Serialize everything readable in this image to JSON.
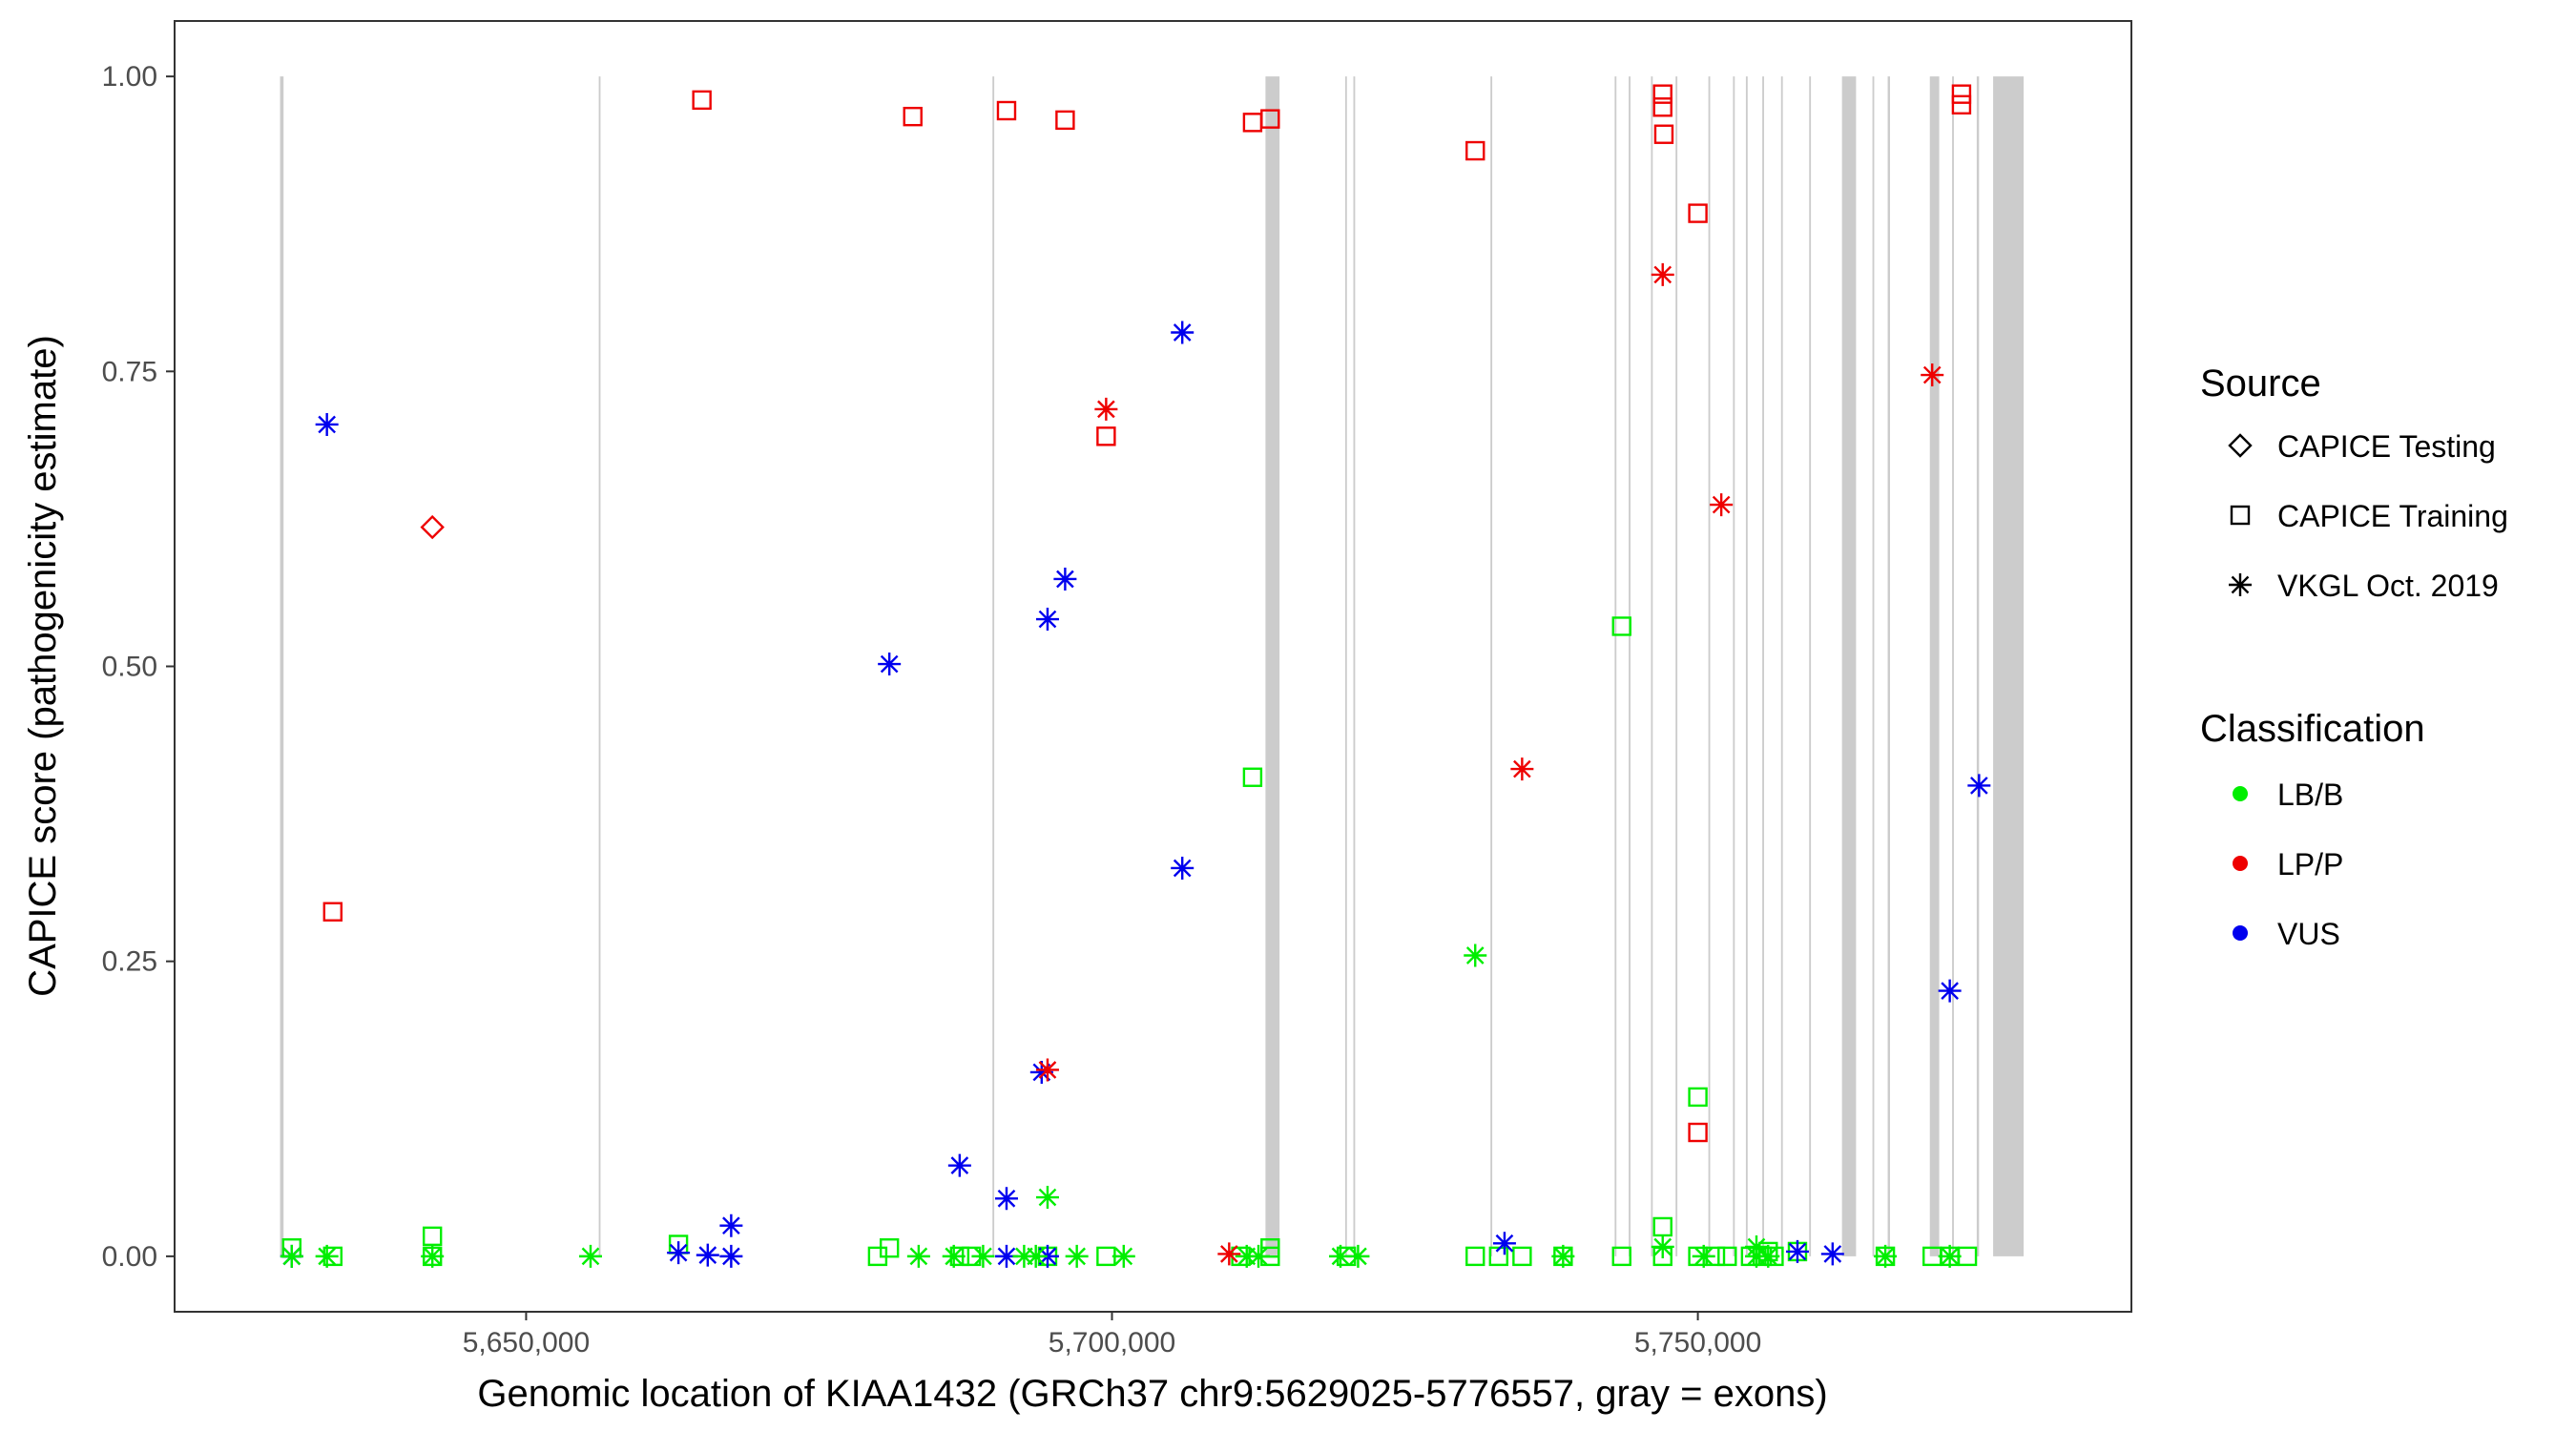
{
  "chart_data": {
    "type": "scatter",
    "title": "",
    "xlabel": "Genomic location of KIAA1432 (GRCh37 chr9:5629025-5776557, gray = exons)",
    "ylabel": "CAPICE score (pathogenicity estimate)",
    "xlim": [
      5620000,
      5787000
    ],
    "ylim": [
      -0.047,
      1.047
    ],
    "x_ticks": [
      5650000,
      5700000,
      5750000
    ],
    "x_tick_labels": [
      "5,650,000",
      "5,700,000",
      "5,750,000"
    ],
    "y_ticks": [
      0,
      0.25,
      0.5,
      0.75,
      1
    ],
    "y_tick_labels": [
      "0.00",
      "0.25",
      "0.50",
      "0.75",
      "1.00"
    ],
    "grid": false,
    "exons": [
      [
        5629000,
        5629300
      ],
      [
        5656200,
        5656350
      ],
      [
        5689800,
        5689950
      ],
      [
        5713100,
        5714300
      ],
      [
        5719900,
        5720050
      ],
      [
        5720600,
        5720750
      ],
      [
        5732300,
        5732450
      ],
      [
        5742900,
        5743050
      ],
      [
        5744100,
        5744250
      ],
      [
        5746000,
        5746150
      ],
      [
        5748100,
        5748250
      ],
      [
        5750900,
        5751050
      ],
      [
        5753000,
        5753150
      ],
      [
        5754100,
        5754250
      ],
      [
        5755500,
        5755650
      ],
      [
        5757100,
        5757250
      ],
      [
        5759500,
        5759650
      ],
      [
        5762300,
        5763500
      ],
      [
        5764900,
        5765050
      ],
      [
        5766200,
        5766400
      ],
      [
        5769800,
        5770600
      ],
      [
        5771700,
        5771850
      ],
      [
        5773800,
        5774000
      ],
      [
        5775200,
        5777800
      ]
    ],
    "legend": {
      "source_title": "Source",
      "source_entries": [
        "CAPICE Testing",
        "CAPICE Training",
        "VKGL Oct. 2019"
      ],
      "class_title": "Classification",
      "class_entries": [
        "LB/B",
        "LP/P",
        "VUS"
      ],
      "placement": "right"
    },
    "colors": {
      "LB/B": "#00ee00",
      "LP/P": "#ee0000",
      "VUS": "#0000ee"
    },
    "series": [
      {
        "name": "CAPICE Testing",
        "points": [
          {
            "x": 5642000,
            "y": 0.618,
            "class": "LP/P"
          }
        ]
      },
      {
        "name": "CAPICE Training",
        "points": [
          {
            "x": 5665000,
            "y": 0.98,
            "class": "LP/P"
          },
          {
            "x": 5683000,
            "y": 0.966,
            "class": "LP/P"
          },
          {
            "x": 5691000,
            "y": 0.971,
            "class": "LP/P"
          },
          {
            "x": 5696000,
            "y": 0.963,
            "class": "LP/P"
          },
          {
            "x": 5712000,
            "y": 0.961,
            "class": "LP/P"
          },
          {
            "x": 5713500,
            "y": 0.964,
            "class": "LP/P"
          },
          {
            "x": 5731000,
            "y": 0.937,
            "class": "LP/P"
          },
          {
            "x": 5747000,
            "y": 0.985,
            "class": "LP/P"
          },
          {
            "x": 5747000,
            "y": 0.974,
            "class": "LP/P"
          },
          {
            "x": 5747100,
            "y": 0.951,
            "class": "LP/P"
          },
          {
            "x": 5750000,
            "y": 0.884,
            "class": "LP/P"
          },
          {
            "x": 5772500,
            "y": 0.985,
            "class": "LP/P"
          },
          {
            "x": 5772500,
            "y": 0.976,
            "class": "LP/P"
          },
          {
            "x": 5699500,
            "y": 0.695,
            "class": "LP/P"
          },
          {
            "x": 5633500,
            "y": 0.292,
            "class": "LP/P"
          },
          {
            "x": 5750000,
            "y": 0.105,
            "class": "LP/P"
          },
          {
            "x": 5743500,
            "y": 0.534,
            "class": "LB/B"
          },
          {
            "x": 5712000,
            "y": 0.406,
            "class": "LB/B"
          },
          {
            "x": 5750000,
            "y": 0.135,
            "class": "LB/B"
          },
          {
            "x": 5747000,
            "y": 0.025,
            "class": "LB/B"
          },
          {
            "x": 5642000,
            "y": 0.017,
            "class": "LB/B"
          },
          {
            "x": 5663000,
            "y": 0.01,
            "class": "LB/B"
          },
          {
            "x": 5630000,
            "y": 0.007,
            "class": "LB/B"
          },
          {
            "x": 5681000,
            "y": 0.007,
            "class": "LB/B"
          },
          {
            "x": 5713500,
            "y": 0.007,
            "class": "LB/B"
          },
          {
            "x": 5756000,
            "y": 0.004,
            "class": "LB/B"
          },
          {
            "x": 5758500,
            "y": 0.004,
            "class": "LB/B"
          },
          {
            "x": 5633500,
            "y": 0.0,
            "class": "LB/B"
          },
          {
            "x": 5642000,
            "y": 0.0,
            "class": "LB/B"
          },
          {
            "x": 5680000,
            "y": 0.0,
            "class": "LB/B"
          },
          {
            "x": 5687000,
            "y": 0.0,
            "class": "LB/B"
          },
          {
            "x": 5688000,
            "y": 0.0,
            "class": "LB/B"
          },
          {
            "x": 5694500,
            "y": 0.0,
            "class": "LB/B"
          },
          {
            "x": 5699500,
            "y": 0.0,
            "class": "LB/B"
          },
          {
            "x": 5711000,
            "y": 0.0,
            "class": "LB/B"
          },
          {
            "x": 5713500,
            "y": 0.0,
            "class": "LB/B"
          },
          {
            "x": 5720000,
            "y": 0.0,
            "class": "LB/B"
          },
          {
            "x": 5731000,
            "y": 0.0,
            "class": "LB/B"
          },
          {
            "x": 5733000,
            "y": 0.0,
            "class": "LB/B"
          },
          {
            "x": 5735000,
            "y": 0.0,
            "class": "LB/B"
          },
          {
            "x": 5738500,
            "y": 0.0,
            "class": "LB/B"
          },
          {
            "x": 5743500,
            "y": 0.0,
            "class": "LB/B"
          },
          {
            "x": 5747000,
            "y": 0.0,
            "class": "LB/B"
          },
          {
            "x": 5750000,
            "y": 0.0,
            "class": "LB/B"
          },
          {
            "x": 5751500,
            "y": 0.0,
            "class": "LB/B"
          },
          {
            "x": 5752500,
            "y": 0.0,
            "class": "LB/B"
          },
          {
            "x": 5754500,
            "y": 0.0,
            "class": "LB/B"
          },
          {
            "x": 5755500,
            "y": 0.0,
            "class": "LB/B"
          },
          {
            "x": 5756500,
            "y": 0.0,
            "class": "LB/B"
          },
          {
            "x": 5766000,
            "y": 0.0,
            "class": "LB/B"
          },
          {
            "x": 5770000,
            "y": 0.0,
            "class": "LB/B"
          },
          {
            "x": 5771500,
            "y": 0.0,
            "class": "LB/B"
          },
          {
            "x": 5773000,
            "y": 0.0,
            "class": "LB/B"
          }
        ]
      },
      {
        "name": "VKGL Oct. 2019",
        "points": [
          {
            "x": 5633000,
            "y": 0.705,
            "class": "VUS"
          },
          {
            "x": 5681000,
            "y": 0.502,
            "class": "VUS"
          },
          {
            "x": 5694500,
            "y": 0.54,
            "class": "VUS"
          },
          {
            "x": 5696000,
            "y": 0.574,
            "class": "VUS"
          },
          {
            "x": 5706000,
            "y": 0.783,
            "class": "VUS"
          },
          {
            "x": 5706000,
            "y": 0.329,
            "class": "VUS"
          },
          {
            "x": 5694000,
            "y": 0.156,
            "class": "VUS"
          },
          {
            "x": 5687000,
            "y": 0.077,
            "class": "VUS"
          },
          {
            "x": 5691000,
            "y": 0.049,
            "class": "VUS"
          },
          {
            "x": 5667500,
            "y": 0.026,
            "class": "VUS"
          },
          {
            "x": 5733500,
            "y": 0.011,
            "class": "VUS"
          },
          {
            "x": 5774000,
            "y": 0.399,
            "class": "VUS"
          },
          {
            "x": 5771500,
            "y": 0.225,
            "class": "VUS"
          },
          {
            "x": 5630000,
            "y": 0.0,
            "class": "VUS"
          },
          {
            "x": 5663000,
            "y": 0.003,
            "class": "VUS"
          },
          {
            "x": 5665500,
            "y": 0.001,
            "class": "VUS"
          },
          {
            "x": 5667500,
            "y": 0.0,
            "class": "VUS"
          },
          {
            "x": 5691000,
            "y": 0.0,
            "class": "VUS"
          },
          {
            "x": 5694500,
            "y": 0.0,
            "class": "VUS"
          },
          {
            "x": 5758500,
            "y": 0.004,
            "class": "VUS"
          },
          {
            "x": 5761500,
            "y": 0.002,
            "class": "VUS"
          },
          {
            "x": 5699500,
            "y": 0.718,
            "class": "LP/P"
          },
          {
            "x": 5694500,
            "y": 0.158,
            "class": "LP/P"
          },
          {
            "x": 5747000,
            "y": 0.832,
            "class": "LP/P"
          },
          {
            "x": 5752000,
            "y": 0.637,
            "class": "LP/P"
          },
          {
            "x": 5735000,
            "y": 0.413,
            "class": "LP/P"
          },
          {
            "x": 5770000,
            "y": 0.747,
            "class": "LP/P"
          },
          {
            "x": 5710000,
            "y": 0.002,
            "class": "LP/P"
          },
          {
            "x": 5694500,
            "y": 0.05,
            "class": "LB/B"
          },
          {
            "x": 5731000,
            "y": 0.255,
            "class": "LB/B"
          },
          {
            "x": 5747000,
            "y": 0.008,
            "class": "LB/B"
          },
          {
            "x": 5755000,
            "y": 0.008,
            "class": "LB/B"
          },
          {
            "x": 5630000,
            "y": 0.0,
            "class": "LB/B"
          },
          {
            "x": 5633000,
            "y": 0.0,
            "class": "LB/B"
          },
          {
            "x": 5642000,
            "y": 0.0,
            "class": "LB/B"
          },
          {
            "x": 5655500,
            "y": 0.0,
            "class": "LB/B"
          },
          {
            "x": 5683500,
            "y": 0.0,
            "class": "LB/B"
          },
          {
            "x": 5686500,
            "y": 0.0,
            "class": "LB/B"
          },
          {
            "x": 5689000,
            "y": 0.0,
            "class": "LB/B"
          },
          {
            "x": 5692500,
            "y": 0.0,
            "class": "LB/B"
          },
          {
            "x": 5693500,
            "y": 0.0,
            "class": "LB/B"
          },
          {
            "x": 5697000,
            "y": 0.0,
            "class": "LB/B"
          },
          {
            "x": 5701000,
            "y": 0.0,
            "class": "LB/B"
          },
          {
            "x": 5711500,
            "y": 0.0,
            "class": "LB/B"
          },
          {
            "x": 5712500,
            "y": 0.0,
            "class": "LB/B"
          },
          {
            "x": 5719500,
            "y": 0.0,
            "class": "LB/B"
          },
          {
            "x": 5721000,
            "y": 0.0,
            "class": "LB/B"
          },
          {
            "x": 5738500,
            "y": 0.0,
            "class": "LB/B"
          },
          {
            "x": 5750500,
            "y": 0.0,
            "class": "LB/B"
          },
          {
            "x": 5755000,
            "y": 0.0,
            "class": "LB/B"
          },
          {
            "x": 5756000,
            "y": 0.0,
            "class": "LB/B"
          },
          {
            "x": 5766000,
            "y": 0.0,
            "class": "LB/B"
          },
          {
            "x": 5771500,
            "y": 0.0,
            "class": "LB/B"
          }
        ]
      }
    ]
  }
}
